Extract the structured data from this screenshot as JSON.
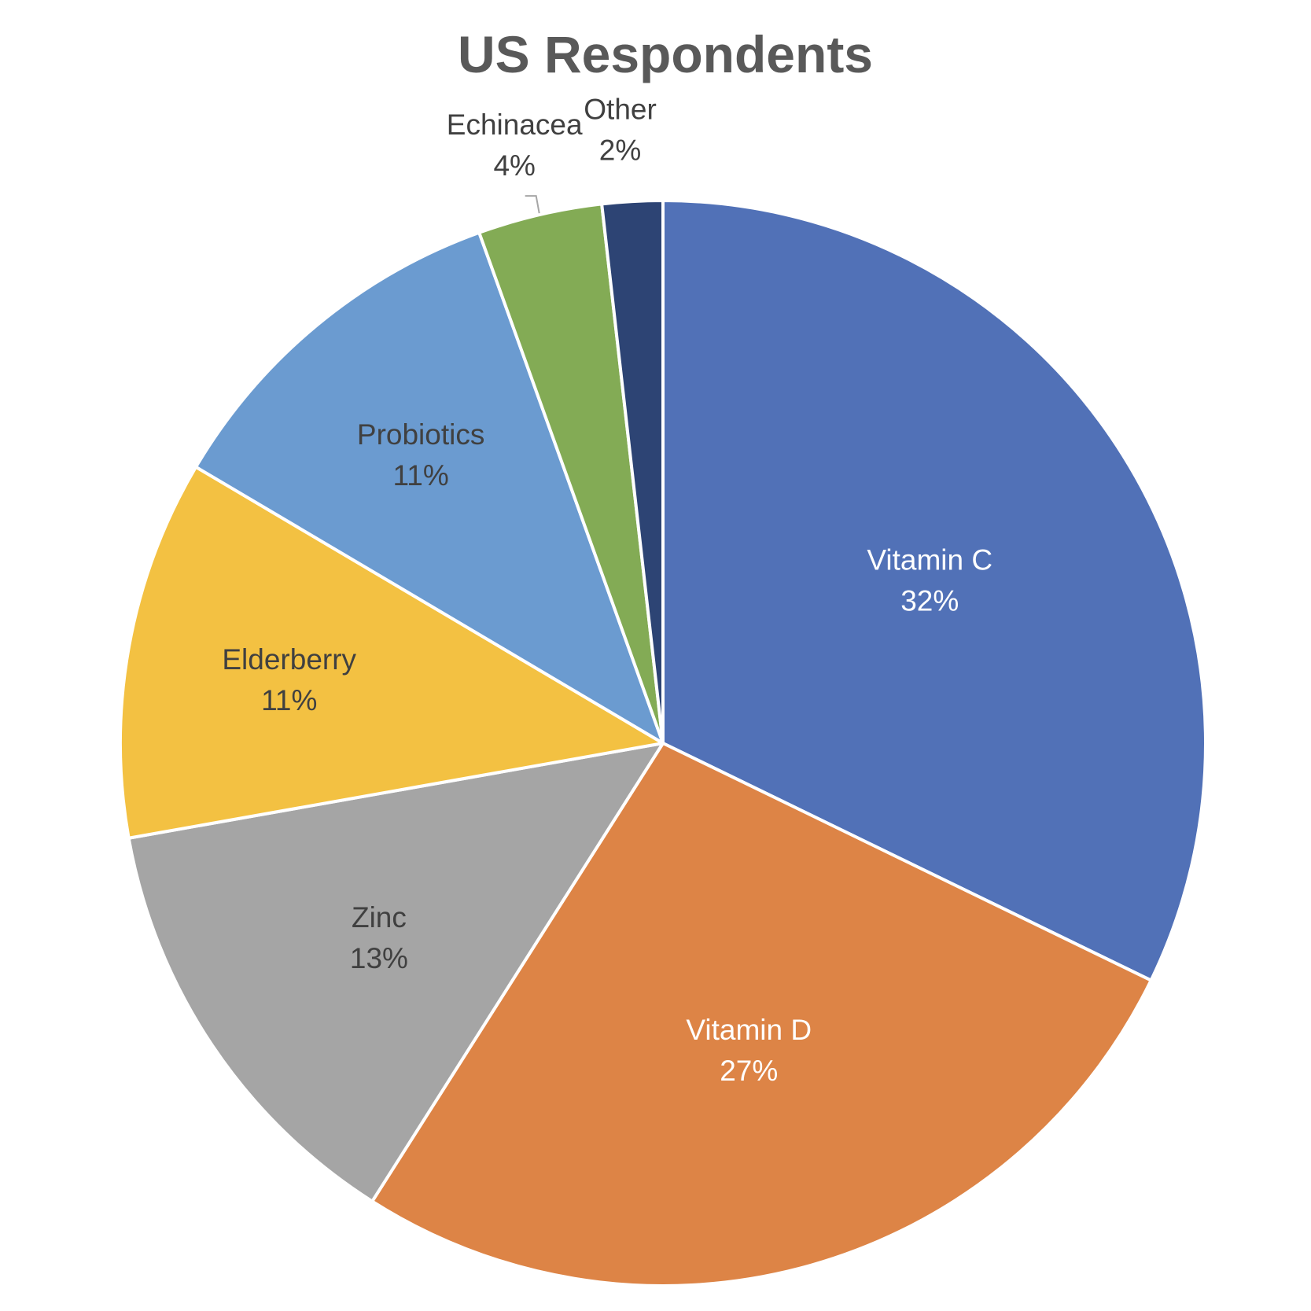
{
  "chart_data": {
    "type": "pie",
    "title": "US Respondents",
    "slices": [
      {
        "label": "Vitamin C",
        "percent_label": "32%",
        "value": 32.2,
        "color": "#5171B7",
        "text_color": "#ffffff"
      },
      {
        "label": "Vitamin D",
        "percent_label": "27%",
        "value": 26.8,
        "color": "#DD8446",
        "text_color": "#ffffff"
      },
      {
        "label": "Zinc",
        "percent_label": "13%",
        "value": 13.2,
        "color": "#A5A5A5",
        "text_color": "#404040"
      },
      {
        "label": "Elderberry",
        "percent_label": "11%",
        "value": 11.3,
        "color": "#F3C142",
        "text_color": "#404040"
      },
      {
        "label": "Probiotics",
        "percent_label": "11%",
        "value": 11.0,
        "color": "#6B9BD0",
        "text_color": "#404040"
      },
      {
        "label": "Echinacea",
        "percent_label": "4%",
        "value": 3.7,
        "color": "#83AB55",
        "text_color": "#404040"
      },
      {
        "label": "Other",
        "percent_label": "2%",
        "value": 1.8,
        "color": "#2D4474",
        "text_color": "#404040"
      }
    ],
    "start": "12 o'clock",
    "direction": "clockwise",
    "legend": "none"
  }
}
